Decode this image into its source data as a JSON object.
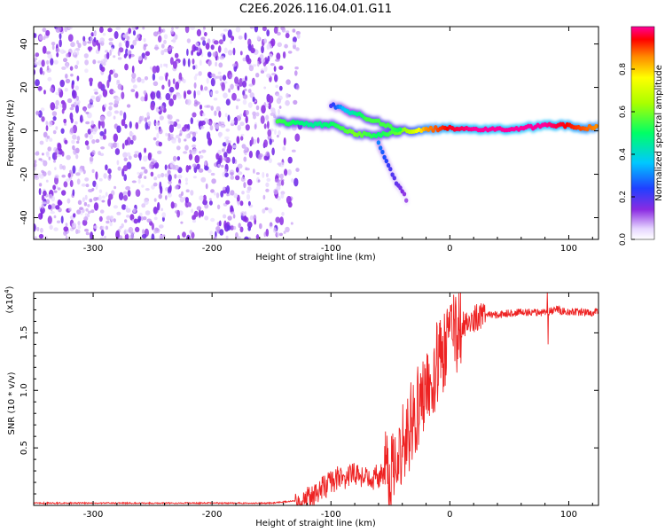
{
  "chart_data": [
    {
      "type": "heatmap",
      "title": "C2E6.2026.116.04.01.G11",
      "xlabel": "Height of straight line (km)",
      "ylabel": "Frequency (Hz)",
      "xlim": [
        -350,
        125
      ],
      "ylim": [
        -50,
        48
      ],
      "xticks": [
        -300,
        -200,
        -100,
        0,
        100
      ],
      "yticks": [
        -40,
        -20,
        0,
        20,
        40
      ],
      "colorbar": {
        "label": "Normalized spectral amplitude",
        "range": [
          0,
          1
        ],
        "ticks": [
          "0.0",
          "0.2",
          "0.4",
          "0.6",
          "0.8"
        ]
      },
      "features": {
        "noise_region_x": [
          -350,
          -140
        ],
        "main_track": [
          {
            "x": -145,
            "freq": 4,
            "amp": 0.55
          },
          {
            "x": -130,
            "freq": 3.5,
            "amp": 0.5
          },
          {
            "x": -115,
            "freq": 3,
            "amp": 0.45
          },
          {
            "x": -100,
            "freq": 3,
            "amp": 0.5
          },
          {
            "x": -90,
            "freq": 1,
            "amp": 0.55
          },
          {
            "x": -80,
            "freq": -1,
            "amp": 0.6
          },
          {
            "x": -70,
            "freq": -2,
            "amp": 0.55
          },
          {
            "x": -60,
            "freq": -2,
            "amp": 0.5
          },
          {
            "x": -50,
            "freq": -1,
            "amp": 0.55
          },
          {
            "x": -40,
            "freq": 0,
            "amp": 0.6
          },
          {
            "x": -30,
            "freq": 0,
            "amp": 0.7
          },
          {
            "x": -20,
            "freq": 0.5,
            "amp": 0.85
          },
          {
            "x": -10,
            "freq": 1,
            "amp": 0.9
          },
          {
            "x": 0,
            "freq": 1,
            "amp": 0.95
          },
          {
            "x": 20,
            "freq": 1,
            "amp": 1.0
          },
          {
            "x": 40,
            "freq": 1,
            "amp": 1.0
          },
          {
            "x": 60,
            "freq": 1,
            "amp": 1.0
          },
          {
            "x": 80,
            "freq": 2.5,
            "amp": 1.0
          },
          {
            "x": 95,
            "freq": 2.5,
            "amp": 0.95
          },
          {
            "x": 110,
            "freq": 1,
            "amp": 0.9
          },
          {
            "x": 125,
            "freq": 2,
            "amp": 0.85
          }
        ],
        "upper_branch": [
          {
            "x": -100,
            "freq": 12,
            "amp": 0.2
          },
          {
            "x": -90,
            "freq": 10,
            "amp": 0.35
          },
          {
            "x": -80,
            "freq": 8,
            "amp": 0.45
          },
          {
            "x": -70,
            "freq": 6,
            "amp": 0.55
          },
          {
            "x": -60,
            "freq": 4,
            "amp": 0.55
          },
          {
            "x": -50,
            "freq": 2,
            "amp": 0.55
          },
          {
            "x": -40,
            "freq": 0,
            "amp": 0.5
          }
        ],
        "lower_branch": [
          {
            "x": -60,
            "freq": -6,
            "amp": 0.3
          },
          {
            "x": -55,
            "freq": -12,
            "amp": 0.25
          },
          {
            "x": -50,
            "freq": -18,
            "amp": 0.2
          },
          {
            "x": -45,
            "freq": -24,
            "amp": 0.18
          },
          {
            "x": -40,
            "freq": -28,
            "amp": 0.15
          },
          {
            "x": -35,
            "freq": -33,
            "amp": 0.1
          }
        ]
      }
    },
    {
      "type": "line",
      "xlabel": "Height of straight line (km)",
      "ylabel": "SNR (10 * v/v)",
      "y_multiplier": "(x10",
      "y_multiplier_exp": "4",
      "y_multiplier_close": ")",
      "xlim": [
        -350,
        125
      ],
      "ylim": [
        0,
        1.85
      ],
      "xticks": [
        -300,
        -200,
        -100,
        0,
        100
      ],
      "yticks": [
        "0.5",
        "1.0",
        "1.5"
      ],
      "series": [
        {
          "name": "SNR",
          "color": "#ee2222",
          "x": [
            -350,
            -300,
            -250,
            -200,
            -150,
            -120,
            -110,
            -100,
            -90,
            -80,
            -70,
            -60,
            -50,
            -45,
            -40,
            -35,
            -30,
            -25,
            -20,
            -15,
            -10,
            -5,
            0,
            5,
            10,
            15,
            20,
            25,
            30,
            40,
            50,
            60,
            70,
            80,
            90,
            100,
            110,
            125
          ],
          "values": [
            0.02,
            0.02,
            0.02,
            0.02,
            0.02,
            0.05,
            0.12,
            0.22,
            0.24,
            0.26,
            0.24,
            0.25,
            0.3,
            0.45,
            0.55,
            0.65,
            0.78,
            0.88,
            1.0,
            1.1,
            1.25,
            1.35,
            1.42,
            1.5,
            1.56,
            1.6,
            1.62,
            1.64,
            1.65,
            1.66,
            1.67,
            1.68,
            1.68,
            1.68,
            1.7,
            1.68,
            1.68,
            1.68
          ]
        }
      ]
    }
  ],
  "colors": {
    "line": "#ee2222",
    "noise": "#7a2bd8",
    "axis": "#000000"
  }
}
